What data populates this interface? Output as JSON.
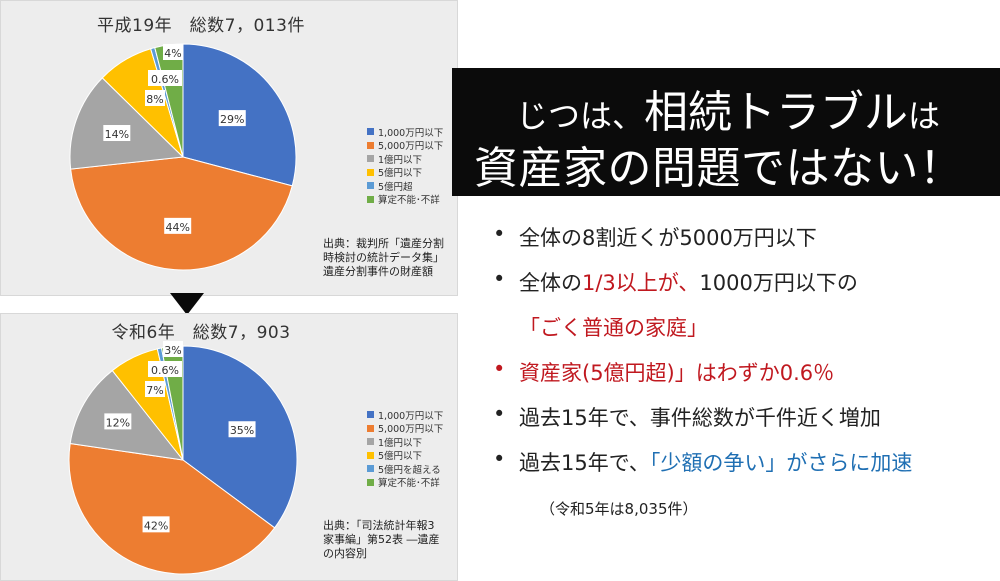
{
  "chart_data": [
    {
      "type": "pie",
      "title": "平成19年　総数7，013件",
      "categories": [
        "1,000万円以下",
        "5,000万円以下",
        "1億円以下",
        "5億円以下",
        "5億円超",
        "算定不能･不詳"
      ],
      "values": [
        29,
        44,
        14,
        8,
        0.6,
        4
      ],
      "labels": [
        "29%",
        "44%",
        "14%",
        "8%",
        "0.6%",
        "4%"
      ],
      "colors": [
        "#4472c4",
        "#ed7d31",
        "#a5a5a5",
        "#ffc000",
        "#5b9bd5",
        "#70ad47"
      ],
      "legend_position": "right",
      "source": [
        "出典：裁判所「遺産分割",
        "時検討の統計データ集」",
        "遺産分割事件の財産額"
      ]
    },
    {
      "type": "pie",
      "title": "令和6年　総数7，903",
      "categories": [
        "1,000万円以下",
        "5,000万円以下",
        "1億円以下",
        "5億円以下",
        "5億円を超える",
        "算定不能･不詳"
      ],
      "values": [
        35,
        42,
        12,
        7,
        0.6,
        3
      ],
      "labels": [
        "35%",
        "42%",
        "12%",
        "7%",
        "0.6%",
        "3%"
      ],
      "colors": [
        "#4472c4",
        "#ed7d31",
        "#a5a5a5",
        "#ffc000",
        "#5b9bd5",
        "#70ad47"
      ],
      "legend_position": "right",
      "source": [
        "出典：「司法統計年報3",
        "家事編」第52表 ―遺産",
        "の内容別"
      ]
    }
  ],
  "headline": {
    "line1_pre": "じつは、",
    "line1_main": "相続トラブル",
    "line1_post": "は",
    "line2": "資産家の問題ではない！"
  },
  "bullets": {
    "b1": "全体の8割近くが5000万円以下",
    "b2_pre": "全体の",
    "b2_red": "1/3以上が、",
    "b2_post": "1000万円以下の",
    "b2_cont": "「ごく普通の家庭」",
    "b3": "資産家(5億円超)」はわずか0.6％",
    "b4": "過去15年で、事件総数が千件近く増加",
    "b5_pre": "過去15年で、",
    "b5_blue": "「少額の争い」がさらに加速",
    "dot": "•"
  },
  "note": "（令和5年は8,035件）"
}
